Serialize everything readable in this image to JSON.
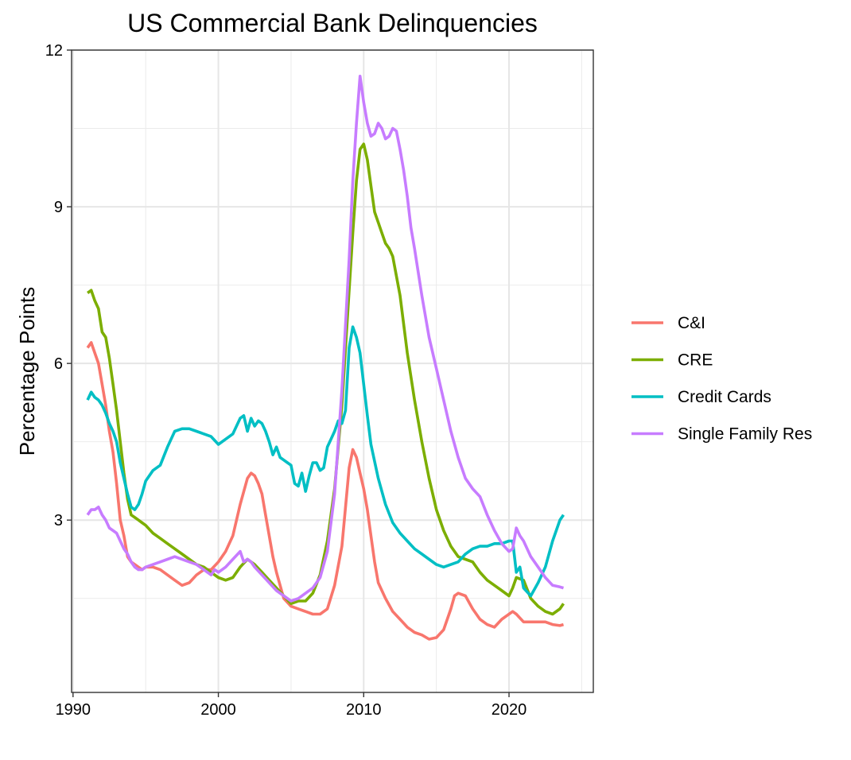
{
  "chart_data": {
    "type": "line",
    "title": "US Commercial Bank Delinquencies",
    "xlabel": "",
    "ylabel": "Percentage Points",
    "xlim": [
      1989.9,
      2025.8
    ],
    "ylim": [
      -0.3,
      12
    ],
    "xticks": [
      1990,
      2000,
      2010,
      2020
    ],
    "yticks": [
      3,
      6,
      9,
      12
    ],
    "grid": true,
    "legend_position": "right",
    "series": [
      {
        "name": "C&I",
        "color": "#F8766D",
        "x": [
          1991.0,
          1991.25,
          1991.5,
          1991.75,
          1992.0,
          1992.25,
          1992.5,
          1992.75,
          1993.0,
          1993.25,
          1993.5,
          1993.75,
          1994.0,
          1994.25,
          1994.5,
          1994.75,
          1995.0,
          1995.5,
          1996.0,
          1996.5,
          1997.0,
          1997.5,
          1998.0,
          1998.5,
          1999.0,
          1999.5,
          2000.0,
          2000.5,
          2001.0,
          2001.5,
          2002.0,
          2002.25,
          2002.5,
          2002.75,
          2003.0,
          2003.25,
          2003.5,
          2003.75,
          2004.0,
          2004.5,
          2005.0,
          2005.5,
          2006.0,
          2006.5,
          2007.0,
          2007.5,
          2008.0,
          2008.5,
          2009.0,
          2009.25,
          2009.5,
          2009.75,
          2010.0,
          2010.25,
          2010.5,
          2010.75,
          2011.0,
          2011.5,
          2012.0,
          2012.5,
          2013.0,
          2013.5,
          2014.0,
          2014.5,
          2015.0,
          2015.5,
          2016.0,
          2016.25,
          2016.5,
          2017.0,
          2017.5,
          2018.0,
          2018.5,
          2019.0,
          2019.5,
          2020.0,
          2020.25,
          2020.5,
          2021.0,
          2021.5,
          2022.0,
          2022.5,
          2023.0,
          2023.5,
          2023.75
        ],
        "values": [
          6.3,
          6.4,
          6.2,
          6.0,
          5.6,
          5.2,
          4.7,
          4.3,
          3.7,
          3.0,
          2.7,
          2.3,
          2.2,
          2.15,
          2.1,
          2.05,
          2.1,
          2.1,
          2.05,
          1.95,
          1.85,
          1.75,
          1.8,
          1.95,
          2.05,
          2.05,
          2.2,
          2.4,
          2.7,
          3.3,
          3.8,
          3.9,
          3.85,
          3.7,
          3.5,
          3.1,
          2.7,
          2.3,
          2.0,
          1.5,
          1.35,
          1.3,
          1.25,
          1.2,
          1.2,
          1.3,
          1.75,
          2.5,
          4.0,
          4.35,
          4.2,
          3.9,
          3.6,
          3.2,
          2.7,
          2.2,
          1.8,
          1.5,
          1.25,
          1.1,
          0.95,
          0.85,
          0.8,
          0.72,
          0.75,
          0.9,
          1.3,
          1.55,
          1.6,
          1.55,
          1.3,
          1.1,
          1.0,
          0.95,
          1.1,
          1.2,
          1.25,
          1.2,
          1.05,
          1.05,
          1.05,
          1.05,
          1.0,
          0.98,
          1.0
        ]
      },
      {
        "name": "CRE",
        "color": "#7CAE00",
        "x": [
          1991.0,
          1991.25,
          1991.5,
          1991.75,
          1992.0,
          1992.25,
          1992.5,
          1992.75,
          1993.0,
          1993.25,
          1993.5,
          1993.75,
          1994.0,
          1994.25,
          1994.5,
          1994.75,
          1995.0,
          1995.5,
          1996.0,
          1996.5,
          1997.0,
          1997.5,
          1998.0,
          1998.5,
          1999.0,
          1999.5,
          2000.0,
          2000.5,
          2001.0,
          2001.5,
          2002.0,
          2002.5,
          2003.0,
          2003.5,
          2004.0,
          2004.5,
          2005.0,
          2005.5,
          2006.0,
          2006.5,
          2007.0,
          2007.5,
          2008.0,
          2008.5,
          2009.0,
          2009.25,
          2009.5,
          2009.75,
          2010.0,
          2010.25,
          2010.5,
          2010.75,
          2011.0,
          2011.25,
          2011.5,
          2011.75,
          2012.0,
          2012.5,
          2013.0,
          2013.5,
          2014.0,
          2014.5,
          2015.0,
          2015.5,
          2016.0,
          2016.5,
          2017.0,
          2017.5,
          2018.0,
          2018.5,
          2019.0,
          2019.5,
          2020.0,
          2020.25,
          2020.5,
          2021.0,
          2021.5,
          2022.0,
          2022.5,
          2023.0,
          2023.5,
          2023.75
        ],
        "values": [
          7.35,
          7.4,
          7.2,
          7.05,
          6.6,
          6.5,
          6.1,
          5.6,
          5.1,
          4.5,
          3.9,
          3.4,
          3.1,
          3.05,
          3.0,
          2.95,
          2.9,
          2.75,
          2.65,
          2.55,
          2.45,
          2.35,
          2.25,
          2.15,
          2.1,
          2.0,
          1.9,
          1.85,
          1.9,
          2.1,
          2.25,
          2.15,
          2.0,
          1.85,
          1.7,
          1.55,
          1.4,
          1.45,
          1.45,
          1.6,
          1.95,
          2.6,
          3.6,
          5.2,
          7.4,
          8.5,
          9.5,
          10.1,
          10.2,
          9.9,
          9.4,
          8.9,
          8.7,
          8.5,
          8.3,
          8.2,
          8.05,
          7.3,
          6.2,
          5.3,
          4.5,
          3.8,
          3.2,
          2.8,
          2.5,
          2.3,
          2.25,
          2.2,
          2.0,
          1.85,
          1.75,
          1.65,
          1.55,
          1.7,
          1.9,
          1.85,
          1.5,
          1.35,
          1.25,
          1.2,
          1.3,
          1.4
        ]
      },
      {
        "name": "Credit Cards",
        "color": "#00BFC4",
        "x": [
          1991.0,
          1991.25,
          1991.5,
          1991.75,
          1992.0,
          1992.25,
          1992.5,
          1992.75,
          1993.0,
          1993.25,
          1993.5,
          1993.75,
          1994.0,
          1994.25,
          1994.5,
          1994.75,
          1995.0,
          1995.5,
          1996.0,
          1996.5,
          1997.0,
          1997.5,
          1998.0,
          1998.5,
          1999.0,
          1999.5,
          2000.0,
          2000.5,
          2001.0,
          2001.5,
          2001.75,
          2002.0,
          2002.25,
          2002.5,
          2002.75,
          2003.0,
          2003.25,
          2003.5,
          2003.75,
          2004.0,
          2004.25,
          2004.5,
          2004.75,
          2005.0,
          2005.25,
          2005.5,
          2005.75,
          2006.0,
          2006.25,
          2006.5,
          2006.75,
          2007.0,
          2007.25,
          2007.5,
          2007.75,
          2008.0,
          2008.25,
          2008.5,
          2008.75,
          2009.0,
          2009.25,
          2009.5,
          2009.75,
          2010.0,
          2010.25,
          2010.5,
          2011.0,
          2011.5,
          2012.0,
          2012.5,
          2013.0,
          2013.5,
          2014.0,
          2014.5,
          2015.0,
          2015.5,
          2016.0,
          2016.5,
          2017.0,
          2017.5,
          2018.0,
          2018.5,
          2019.0,
          2019.5,
          2020.0,
          2020.25,
          2020.5,
          2020.75,
          2021.0,
          2021.5,
          2022.0,
          2022.5,
          2023.0,
          2023.25,
          2023.5,
          2023.75
        ],
        "values": [
          5.3,
          5.45,
          5.35,
          5.3,
          5.2,
          5.05,
          4.85,
          4.7,
          4.5,
          4.1,
          3.8,
          3.5,
          3.25,
          3.2,
          3.3,
          3.5,
          3.75,
          3.95,
          4.05,
          4.4,
          4.7,
          4.75,
          4.75,
          4.7,
          4.65,
          4.6,
          4.45,
          4.55,
          4.65,
          4.95,
          5.0,
          4.7,
          4.95,
          4.8,
          4.9,
          4.85,
          4.7,
          4.5,
          4.25,
          4.4,
          4.2,
          4.15,
          4.1,
          4.05,
          3.7,
          3.65,
          3.9,
          3.55,
          3.85,
          4.1,
          4.1,
          3.95,
          4.0,
          4.4,
          4.55,
          4.7,
          4.9,
          4.85,
          5.1,
          6.3,
          6.7,
          6.5,
          6.2,
          5.6,
          5.0,
          4.45,
          3.8,
          3.3,
          2.95,
          2.75,
          2.6,
          2.45,
          2.35,
          2.25,
          2.15,
          2.1,
          2.15,
          2.2,
          2.35,
          2.45,
          2.5,
          2.5,
          2.55,
          2.55,
          2.6,
          2.6,
          2.0,
          2.1,
          1.7,
          1.55,
          1.8,
          2.1,
          2.6,
          2.8,
          3.0,
          3.1
        ]
      },
      {
        "name": "Single Family Res",
        "color": "#C77CFF",
        "x": [
          1991.0,
          1991.25,
          1991.5,
          1991.75,
          1992.0,
          1992.25,
          1992.5,
          1992.75,
          1993.0,
          1993.25,
          1993.5,
          1993.75,
          1994.0,
          1994.25,
          1994.5,
          1994.75,
          1995.0,
          1995.5,
          1996.0,
          1996.5,
          1997.0,
          1997.5,
          1998.0,
          1998.5,
          1999.0,
          1999.5,
          1999.75,
          2000.0,
          2000.5,
          2001.0,
          2001.5,
          2001.75,
          2002.0,
          2002.25,
          2002.5,
          2003.0,
          2003.5,
          2004.0,
          2004.5,
          2005.0,
          2005.5,
          2006.0,
          2006.5,
          2007.0,
          2007.5,
          2008.0,
          2008.5,
          2009.0,
          2009.25,
          2009.5,
          2009.75,
          2010.0,
          2010.25,
          2010.5,
          2010.75,
          2011.0,
          2011.25,
          2011.5,
          2011.75,
          2012.0,
          2012.25,
          2012.5,
          2012.75,
          2013.0,
          2013.25,
          2013.5,
          2014.0,
          2014.5,
          2015.0,
          2015.5,
          2016.0,
          2016.5,
          2017.0,
          2017.5,
          2018.0,
          2018.5,
          2019.0,
          2019.5,
          2020.0,
          2020.25,
          2020.5,
          2020.75,
          2021.0,
          2021.5,
          2022.0,
          2022.5,
          2023.0,
          2023.5,
          2023.75
        ],
        "values": [
          3.1,
          3.2,
          3.2,
          3.25,
          3.1,
          3.0,
          2.85,
          2.8,
          2.75,
          2.6,
          2.45,
          2.35,
          2.2,
          2.1,
          2.05,
          2.05,
          2.1,
          2.15,
          2.2,
          2.25,
          2.3,
          2.25,
          2.2,
          2.15,
          2.05,
          1.95,
          2.05,
          2.0,
          2.1,
          2.25,
          2.4,
          2.2,
          2.25,
          2.2,
          2.1,
          1.95,
          1.8,
          1.65,
          1.55,
          1.45,
          1.5,
          1.6,
          1.7,
          1.9,
          2.4,
          3.5,
          5.5,
          8.0,
          9.5,
          10.6,
          11.5,
          11.0,
          10.6,
          10.35,
          10.4,
          10.6,
          10.5,
          10.3,
          10.35,
          10.5,
          10.45,
          10.1,
          9.7,
          9.2,
          8.6,
          8.2,
          7.3,
          6.5,
          5.9,
          5.3,
          4.7,
          4.2,
          3.8,
          3.6,
          3.45,
          3.1,
          2.8,
          2.55,
          2.4,
          2.45,
          2.85,
          2.7,
          2.6,
          2.3,
          2.1,
          1.9,
          1.75,
          1.72,
          1.7
        ]
      }
    ]
  }
}
